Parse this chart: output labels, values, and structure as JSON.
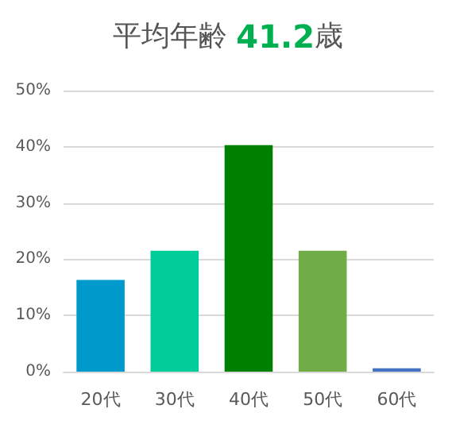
{
  "chart_data": {
    "type": "bar",
    "title": "平均年齢 41.2歳",
    "categories": [
      "20代",
      "30代",
      "40代",
      "50代",
      "60代"
    ],
    "values": [
      16.3,
      21.5,
      40.3,
      21.5,
      0.6
    ],
    "colors": [
      "#0099cc",
      "#00cc99",
      "#008000",
      "#70ad47",
      "#4472c4"
    ],
    "ylim": [
      0,
      50
    ],
    "yticks": [
      {
        "value": 0,
        "label": "0%"
      },
      {
        "value": 10,
        "label": "10%"
      },
      {
        "value": 20,
        "label": "20%"
      },
      {
        "value": 30,
        "label": "30%"
      },
      {
        "value": 40,
        "label": "40%"
      },
      {
        "value": 50,
        "label": "50%"
      }
    ],
    "grid": true
  }
}
